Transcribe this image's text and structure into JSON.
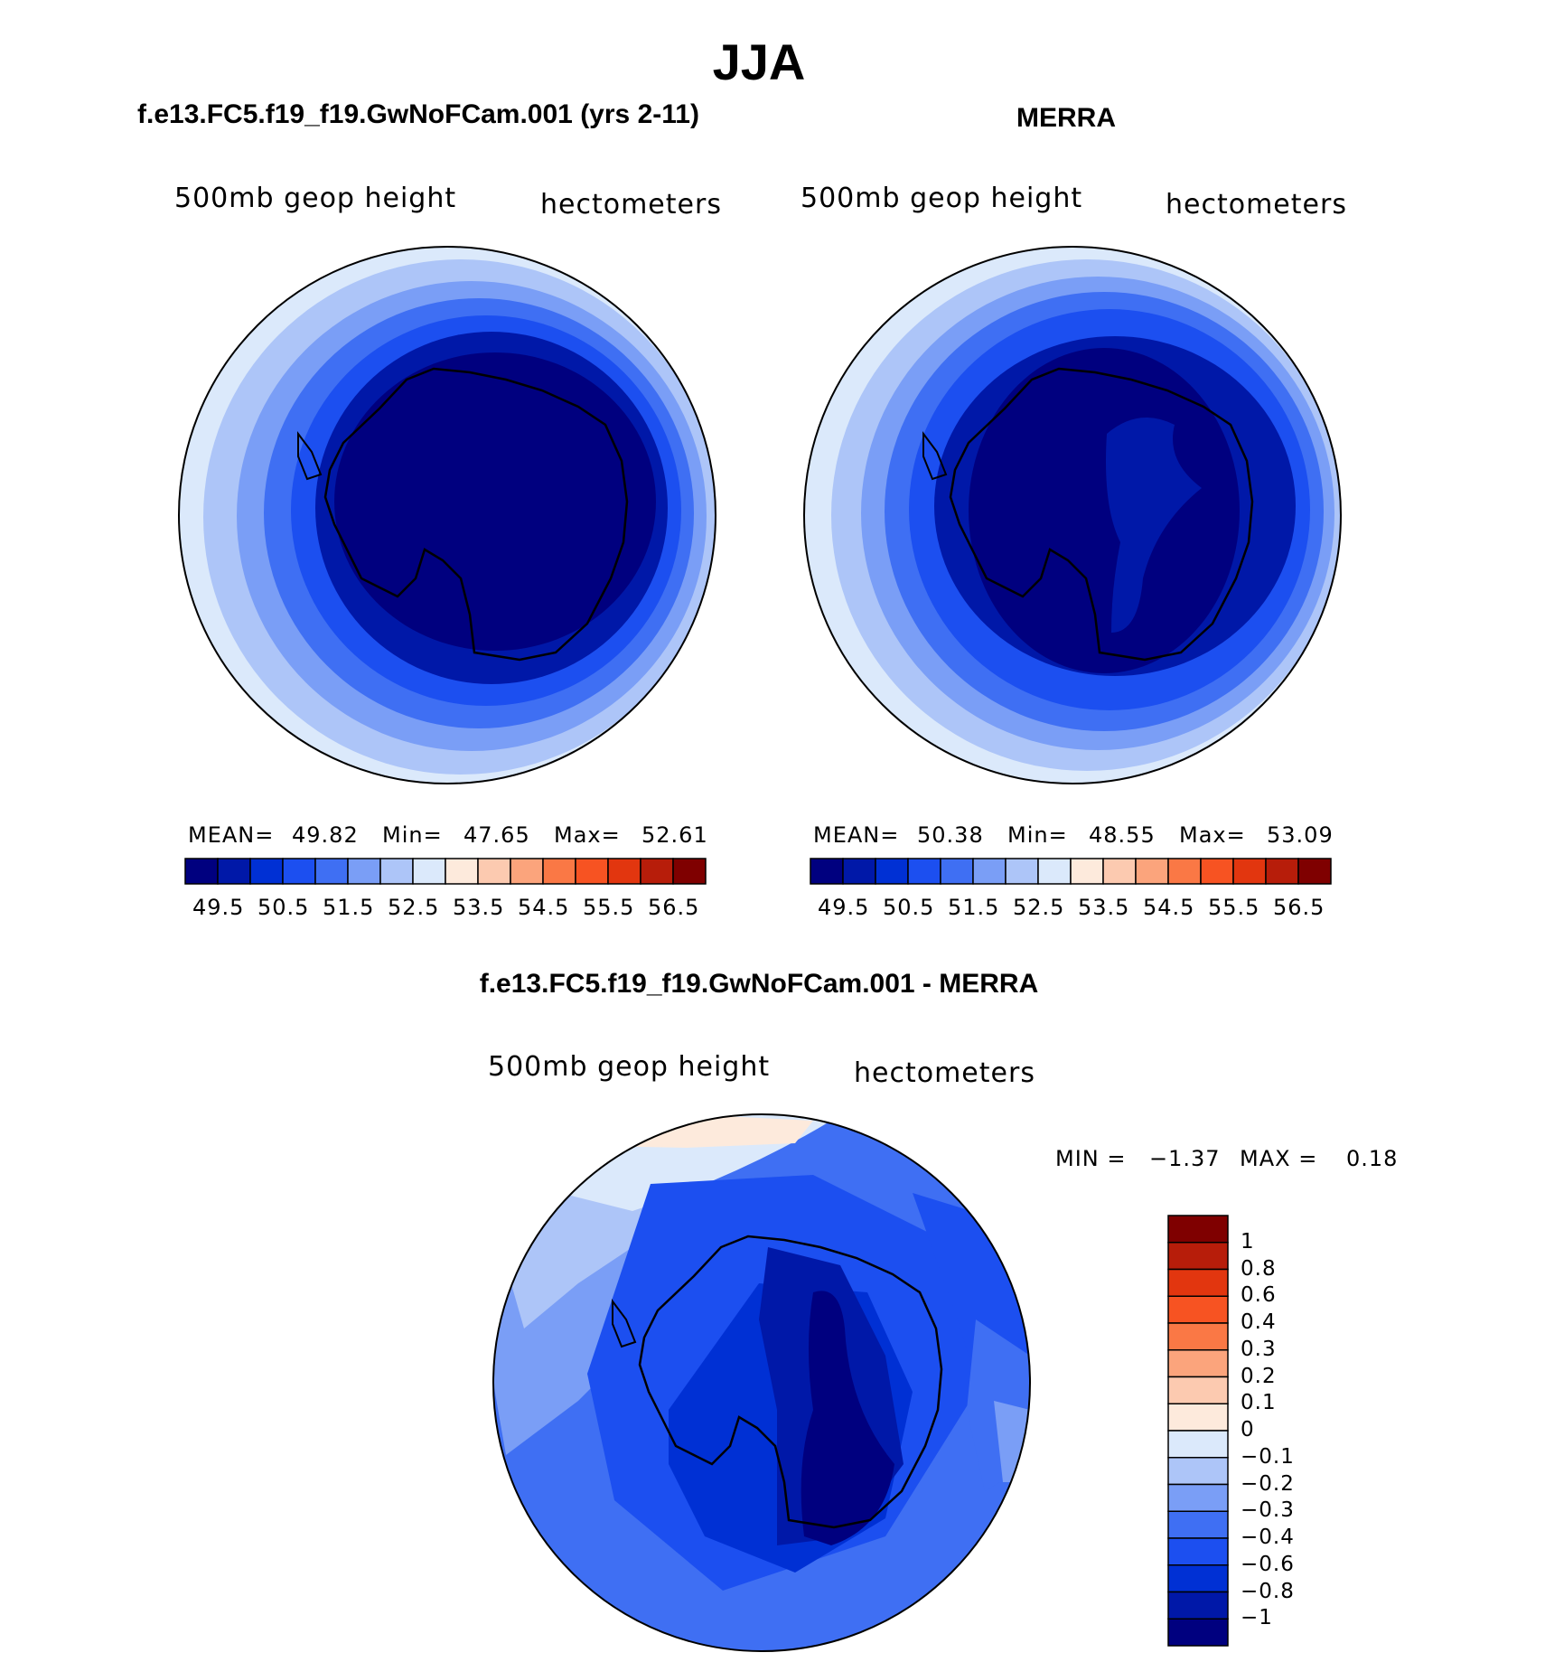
{
  "main_title": "JJA",
  "panels": [
    {
      "title": "f.e13.FC5.f19_f19.GwNoFCam.001 (yrs 2-11)",
      "field_label": "500mb geop height",
      "units": "hectometers",
      "stats": {
        "mean_label": "MEAN=",
        "mean": "49.82",
        "min_label": "Min=",
        "min": "47.65",
        "max_label": "Max=",
        "max": "52.61"
      }
    },
    {
      "title": "MERRA",
      "field_label": "500mb geop height",
      "units": "hectometers",
      "stats": {
        "mean_label": "MEAN=",
        "mean": "50.38",
        "min_label": "Min=",
        "min": "48.55",
        "max_label": "Max=",
        "max": "53.09"
      }
    }
  ],
  "colorbar_ticks": [
    "49.5",
    "50.5",
    "51.5",
    "52.5",
    "53.5",
    "54.5",
    "55.5",
    "56.5"
  ],
  "colorbar_colors": [
    "#00007f",
    "#0018a8",
    "#0030d4",
    "#1c4ff0",
    "#3f6ff3",
    "#7a9ef6",
    "#adc5f8",
    "#dbe9fb",
    "#fdeadc",
    "#fccab0",
    "#fba47c",
    "#fa7845",
    "#f75322",
    "#e2360f",
    "#b71d0a",
    "#7f0000"
  ],
  "diff_panel": {
    "title": "f.e13.FC5.f19_f19.GwNoFCam.001 - MERRA",
    "field_label": "500mb geop height",
    "units": "hectometers",
    "min_label": "MIN =",
    "min": "−1.37",
    "max_label": "MAX =",
    "max": "0.18",
    "legend_labels": [
      "1",
      "0.8",
      "0.6",
      "0.4",
      "0.3",
      "0.2",
      "0.1",
      "0",
      "−0.1",
      "−0.2",
      "−0.3",
      "−0.4",
      "−0.6",
      "−0.8",
      "−1"
    ],
    "legend_colors": [
      "#7f0000",
      "#b71d0a",
      "#e2360f",
      "#f75322",
      "#fa7845",
      "#fba47c",
      "#fccab0",
      "#fdeadc",
      "#dbe9fb",
      "#adc5f8",
      "#7a9ef6",
      "#3f6ff3",
      "#1c4ff0",
      "#0030d4",
      "#0018a8",
      "#00007f"
    ]
  }
}
